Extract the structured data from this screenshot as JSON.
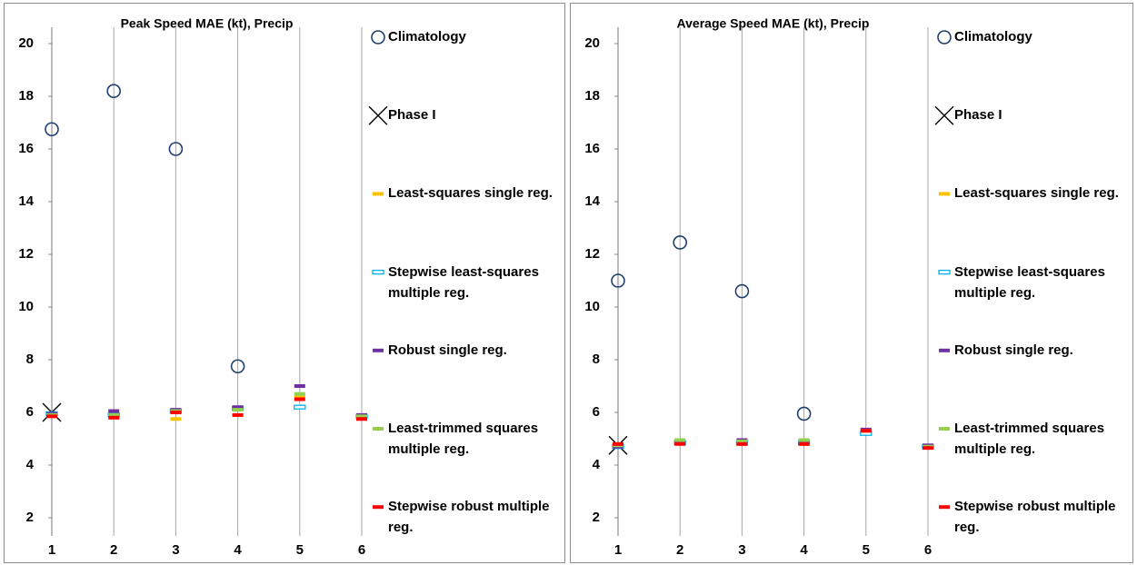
{
  "chart_data": [
    {
      "type": "scatter",
      "title": "Peak Speed MAE (kt), Precip",
      "x": [
        1,
        2,
        3,
        4,
        5,
        6
      ],
      "xlim": [
        1,
        6
      ],
      "xticks": [
        1,
        2,
        3,
        4,
        5,
        6
      ],
      "ylim": [
        2,
        20
      ],
      "yticks": [
        2,
        4,
        6,
        8,
        10,
        12,
        14,
        16,
        18,
        20
      ],
      "grid": "x",
      "legend": "right",
      "series": [
        {
          "name": "Climatology",
          "marker": "circle",
          "color": "#1f3f6e",
          "values": [
            16.75,
            18.2,
            16.0,
            7.75,
            null,
            null
          ]
        },
        {
          "name": "Phase I",
          "marker": "x",
          "color": "#000000",
          "values": [
            6.0,
            null,
            null,
            null,
            null,
            null
          ]
        },
        {
          "name": "Least-squares single reg.",
          "marker": "dash",
          "color": "#ffc000",
          "values": [
            5.9,
            5.85,
            5.75,
            5.9,
            6.6,
            5.8
          ]
        },
        {
          "name": "Stepwise least-squares multiple reg.",
          "marker": "hollow-dash",
          "color": "#00b0f0",
          "values": [
            5.95,
            5.9,
            6.05,
            6.15,
            6.2,
            5.85
          ]
        },
        {
          "name": "Robust single reg.",
          "marker": "dash",
          "color": "#7030a0",
          "values": [
            5.95,
            6.05,
            6.1,
            6.2,
            7.0,
            5.9
          ]
        },
        {
          "name": "Least-trimmed squares multiple reg.",
          "marker": "dash",
          "color": "#92d050",
          "values": [
            5.9,
            5.9,
            6.05,
            6.1,
            6.7,
            5.85
          ]
        },
        {
          "name": "Stepwise robust multiple reg.",
          "marker": "dash",
          "color": "#ff0000",
          "values": [
            5.85,
            5.8,
            6.0,
            5.9,
            6.5,
            5.75
          ]
        }
      ]
    },
    {
      "type": "scatter",
      "title": "Average Speed MAE (kt), Precip",
      "x": [
        1,
        2,
        3,
        4,
        5,
        6
      ],
      "xlim": [
        1,
        6
      ],
      "xticks": [
        1,
        2,
        3,
        4,
        5,
        6
      ],
      "ylim": [
        2,
        20
      ],
      "yticks": [
        2,
        4,
        6,
        8,
        10,
        12,
        14,
        16,
        18,
        20
      ],
      "grid": "x",
      "legend": "right",
      "series": [
        {
          "name": "Climatology",
          "marker": "circle",
          "color": "#1f3f6e",
          "values": [
            11.0,
            12.45,
            10.6,
            5.95,
            null,
            null
          ]
        },
        {
          "name": "Phase I",
          "marker": "x",
          "color": "#000000",
          "values": [
            4.75,
            null,
            null,
            null,
            null,
            null
          ]
        },
        {
          "name": "Least-squares single reg.",
          "marker": "dash",
          "color": "#ffc000",
          "values": [
            4.75,
            4.85,
            4.8,
            4.8,
            5.3,
            4.7
          ]
        },
        {
          "name": "Stepwise least-squares multiple reg.",
          "marker": "hollow-dash",
          "color": "#00b0f0",
          "values": [
            4.7,
            4.85,
            4.85,
            4.85,
            5.2,
            4.7
          ]
        },
        {
          "name": "Robust single reg.",
          "marker": "dash",
          "color": "#7030a0",
          "values": [
            4.7,
            4.9,
            4.95,
            4.9,
            5.35,
            4.75
          ]
        },
        {
          "name": "Least-trimmed squares multiple reg.",
          "marker": "dash",
          "color": "#92d050",
          "values": [
            4.75,
            4.95,
            4.9,
            4.95,
            5.3,
            4.7
          ]
        },
        {
          "name": "Stepwise robust multiple reg.",
          "marker": "dash",
          "color": "#ff0000",
          "values": [
            4.8,
            4.8,
            4.8,
            4.8,
            5.3,
            4.65
          ]
        }
      ]
    }
  ]
}
